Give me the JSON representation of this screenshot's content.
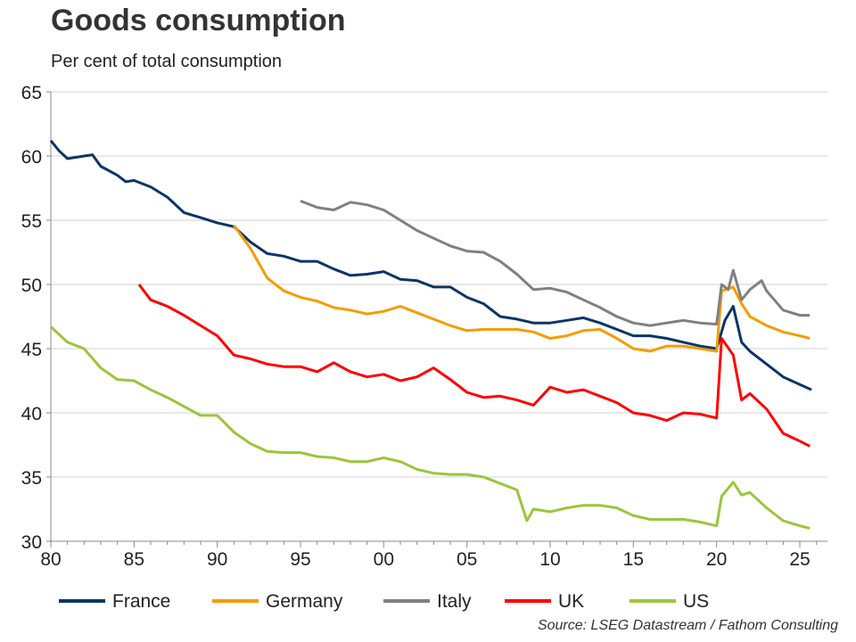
{
  "chart_data": {
    "type": "line",
    "title": "Goods consumption",
    "subtitle": "Per cent of total consumption",
    "source": "Source: LSEG Datastream / Fathom Consulting",
    "xlabel": "",
    "ylabel": "",
    "xlim": [
      1980,
      2026.7
    ],
    "ylim": [
      30,
      65
    ],
    "yticks": [
      30,
      35,
      40,
      45,
      50,
      55,
      60,
      65
    ],
    "xticks": [
      1980,
      1985,
      1990,
      1995,
      2000,
      2005,
      2010,
      2015,
      2020,
      2025
    ],
    "xtick_labels": [
      "80",
      "85",
      "90",
      "95",
      "00",
      "05",
      "10",
      "15",
      "20",
      "25"
    ],
    "grid": "horizontal",
    "legend_position": "bottom",
    "series": [
      {
        "name": "France",
        "color": "#0b3566",
        "points": [
          [
            1980,
            61.2
          ],
          [
            1980.5,
            60.4
          ],
          [
            1981,
            59.8
          ],
          [
            1982,
            60.0
          ],
          [
            1982.5,
            60.1
          ],
          [
            1983,
            59.2
          ],
          [
            1984,
            58.5
          ],
          [
            1984.5,
            58.0
          ],
          [
            1985,
            58.1
          ],
          [
            1986,
            57.6
          ],
          [
            1987,
            56.8
          ],
          [
            1988,
            55.6
          ],
          [
            1989,
            55.2
          ],
          [
            1990,
            54.8
          ],
          [
            1991,
            54.5
          ],
          [
            1992,
            53.3
          ],
          [
            1993,
            52.4
          ],
          [
            1994,
            52.2
          ],
          [
            1995,
            51.8
          ],
          [
            1996,
            51.8
          ],
          [
            1997,
            51.2
          ],
          [
            1998,
            50.7
          ],
          [
            1999,
            50.8
          ],
          [
            2000,
            51.0
          ],
          [
            2001,
            50.4
          ],
          [
            2002,
            50.3
          ],
          [
            2003,
            49.8
          ],
          [
            2004,
            49.8
          ],
          [
            2005,
            49.0
          ],
          [
            2006,
            48.5
          ],
          [
            2007,
            47.5
          ],
          [
            2008,
            47.3
          ],
          [
            2009,
            47.0
          ],
          [
            2010,
            47.0
          ],
          [
            2011,
            47.2
          ],
          [
            2012,
            47.4
          ],
          [
            2013,
            47.0
          ],
          [
            2014,
            46.5
          ],
          [
            2015,
            46.0
          ],
          [
            2016,
            46.0
          ],
          [
            2017,
            45.8
          ],
          [
            2018,
            45.5
          ],
          [
            2019,
            45.2
          ],
          [
            2020,
            45.0
          ],
          [
            2020.5,
            47.2
          ],
          [
            2021,
            48.3
          ],
          [
            2021.5,
            45.5
          ],
          [
            2022,
            44.8
          ],
          [
            2023,
            43.8
          ],
          [
            2024,
            42.8
          ],
          [
            2025,
            42.2
          ],
          [
            2025.7,
            41.8
          ]
        ]
      },
      {
        "name": "Germany",
        "color": "#f59c00",
        "points": [
          [
            1991,
            54.6
          ],
          [
            1992,
            52.8
          ],
          [
            1993,
            50.5
          ],
          [
            1994,
            49.5
          ],
          [
            1995,
            49.0
          ],
          [
            1996,
            48.7
          ],
          [
            1997,
            48.2
          ],
          [
            1998,
            48.0
          ],
          [
            1999,
            47.7
          ],
          [
            2000,
            47.9
          ],
          [
            2001,
            48.3
          ],
          [
            2002,
            47.8
          ],
          [
            2003,
            47.3
          ],
          [
            2004,
            46.8
          ],
          [
            2005,
            46.4
          ],
          [
            2006,
            46.5
          ],
          [
            2007,
            46.5
          ],
          [
            2008,
            46.5
          ],
          [
            2009,
            46.3
          ],
          [
            2010,
            45.8
          ],
          [
            2011,
            46.0
          ],
          [
            2012,
            46.4
          ],
          [
            2013,
            46.5
          ],
          [
            2014,
            45.8
          ],
          [
            2015,
            45.0
          ],
          [
            2016,
            44.8
          ],
          [
            2017,
            45.2
          ],
          [
            2018,
            45.2
          ],
          [
            2019,
            45.0
          ],
          [
            2020,
            44.8
          ],
          [
            2020.3,
            49.5
          ],
          [
            2021,
            49.8
          ],
          [
            2021.5,
            48.5
          ],
          [
            2022,
            47.5
          ],
          [
            2023,
            46.8
          ],
          [
            2024,
            46.3
          ],
          [
            2025,
            46.0
          ],
          [
            2025.6,
            45.8
          ]
        ]
      },
      {
        "name": "Italy",
        "color": "#808080",
        "points": [
          [
            1995,
            56.5
          ],
          [
            1996,
            56.0
          ],
          [
            1997,
            55.8
          ],
          [
            1998,
            56.4
          ],
          [
            1999,
            56.2
          ],
          [
            2000,
            55.8
          ],
          [
            2001,
            55.0
          ],
          [
            2002,
            54.2
          ],
          [
            2003,
            53.6
          ],
          [
            2004,
            53.0
          ],
          [
            2005,
            52.6
          ],
          [
            2006,
            52.5
          ],
          [
            2007,
            51.8
          ],
          [
            2008,
            50.8
          ],
          [
            2009,
            49.6
          ],
          [
            2010,
            49.7
          ],
          [
            2011,
            49.4
          ],
          [
            2012,
            48.8
          ],
          [
            2013,
            48.2
          ],
          [
            2014,
            47.5
          ],
          [
            2015,
            47.0
          ],
          [
            2016,
            46.8
          ],
          [
            2017,
            47.0
          ],
          [
            2018,
            47.2
          ],
          [
            2019,
            47.0
          ],
          [
            2020,
            46.9
          ],
          [
            2020.3,
            50.0
          ],
          [
            2020.7,
            49.6
          ],
          [
            2021,
            51.1
          ],
          [
            2021.5,
            48.8
          ],
          [
            2022,
            49.6
          ],
          [
            2022.7,
            50.3
          ],
          [
            2023,
            49.5
          ],
          [
            2024,
            48.0
          ],
          [
            2025,
            47.6
          ],
          [
            2025.6,
            47.6
          ]
        ]
      },
      {
        "name": "UK",
        "color": "#ff0000",
        "points": [
          [
            1985.3,
            50.0
          ],
          [
            1986,
            48.8
          ],
          [
            1987,
            48.3
          ],
          [
            1988,
            47.6
          ],
          [
            1989,
            46.8
          ],
          [
            1990,
            46.0
          ],
          [
            1991,
            44.5
          ],
          [
            1992,
            44.2
          ],
          [
            1993,
            43.8
          ],
          [
            1994,
            43.6
          ],
          [
            1995,
            43.6
          ],
          [
            1996,
            43.2
          ],
          [
            1997,
            43.9
          ],
          [
            1998,
            43.2
          ],
          [
            1999,
            42.8
          ],
          [
            2000,
            43.0
          ],
          [
            2001,
            42.5
          ],
          [
            2002,
            42.8
          ],
          [
            2003,
            43.5
          ],
          [
            2004,
            42.6
          ],
          [
            2005,
            41.6
          ],
          [
            2006,
            41.2
          ],
          [
            2007,
            41.3
          ],
          [
            2008,
            41.0
          ],
          [
            2009,
            40.6
          ],
          [
            2010,
            42.0
          ],
          [
            2011,
            41.6
          ],
          [
            2012,
            41.8
          ],
          [
            2013,
            41.3
          ],
          [
            2014,
            40.8
          ],
          [
            2015,
            40.0
          ],
          [
            2016,
            39.8
          ],
          [
            2017,
            39.4
          ],
          [
            2018,
            40.0
          ],
          [
            2019,
            39.9
          ],
          [
            2020,
            39.6
          ],
          [
            2020.3,
            45.8
          ],
          [
            2021,
            44.5
          ],
          [
            2021.5,
            41.0
          ],
          [
            2022,
            41.5
          ],
          [
            2023,
            40.3
          ],
          [
            2024,
            38.4
          ],
          [
            2025,
            37.8
          ],
          [
            2025.6,
            37.4
          ]
        ]
      },
      {
        "name": "US",
        "color": "#9bc53d",
        "points": [
          [
            1980,
            46.7
          ],
          [
            1981,
            45.5
          ],
          [
            1982,
            45.0
          ],
          [
            1983,
            43.5
          ],
          [
            1984,
            42.6
          ],
          [
            1985,
            42.5
          ],
          [
            1986,
            41.8
          ],
          [
            1987,
            41.2
          ],
          [
            1988,
            40.5
          ],
          [
            1989,
            39.8
          ],
          [
            1990,
            39.8
          ],
          [
            1991,
            38.5
          ],
          [
            1992,
            37.6
          ],
          [
            1993,
            37.0
          ],
          [
            1994,
            36.9
          ],
          [
            1995,
            36.9
          ],
          [
            1996,
            36.6
          ],
          [
            1997,
            36.5
          ],
          [
            1998,
            36.2
          ],
          [
            1999,
            36.2
          ],
          [
            2000,
            36.5
          ],
          [
            2001,
            36.2
          ],
          [
            2002,
            35.6
          ],
          [
            2003,
            35.3
          ],
          [
            2004,
            35.2
          ],
          [
            2005,
            35.2
          ],
          [
            2006,
            35.0
          ],
          [
            2007,
            34.5
          ],
          [
            2008,
            34.0
          ],
          [
            2008.6,
            31.6
          ],
          [
            2009,
            32.5
          ],
          [
            2010,
            32.3
          ],
          [
            2011,
            32.6
          ],
          [
            2012,
            32.8
          ],
          [
            2013,
            32.8
          ],
          [
            2014,
            32.6
          ],
          [
            2015,
            32.0
          ],
          [
            2016,
            31.7
          ],
          [
            2017,
            31.7
          ],
          [
            2018,
            31.7
          ],
          [
            2019,
            31.5
          ],
          [
            2020,
            31.2
          ],
          [
            2020.3,
            33.5
          ],
          [
            2021,
            34.6
          ],
          [
            2021.5,
            33.6
          ],
          [
            2022,
            33.8
          ],
          [
            2023,
            32.6
          ],
          [
            2024,
            31.6
          ],
          [
            2025,
            31.2
          ],
          [
            2025.6,
            31.0
          ]
        ]
      }
    ]
  }
}
